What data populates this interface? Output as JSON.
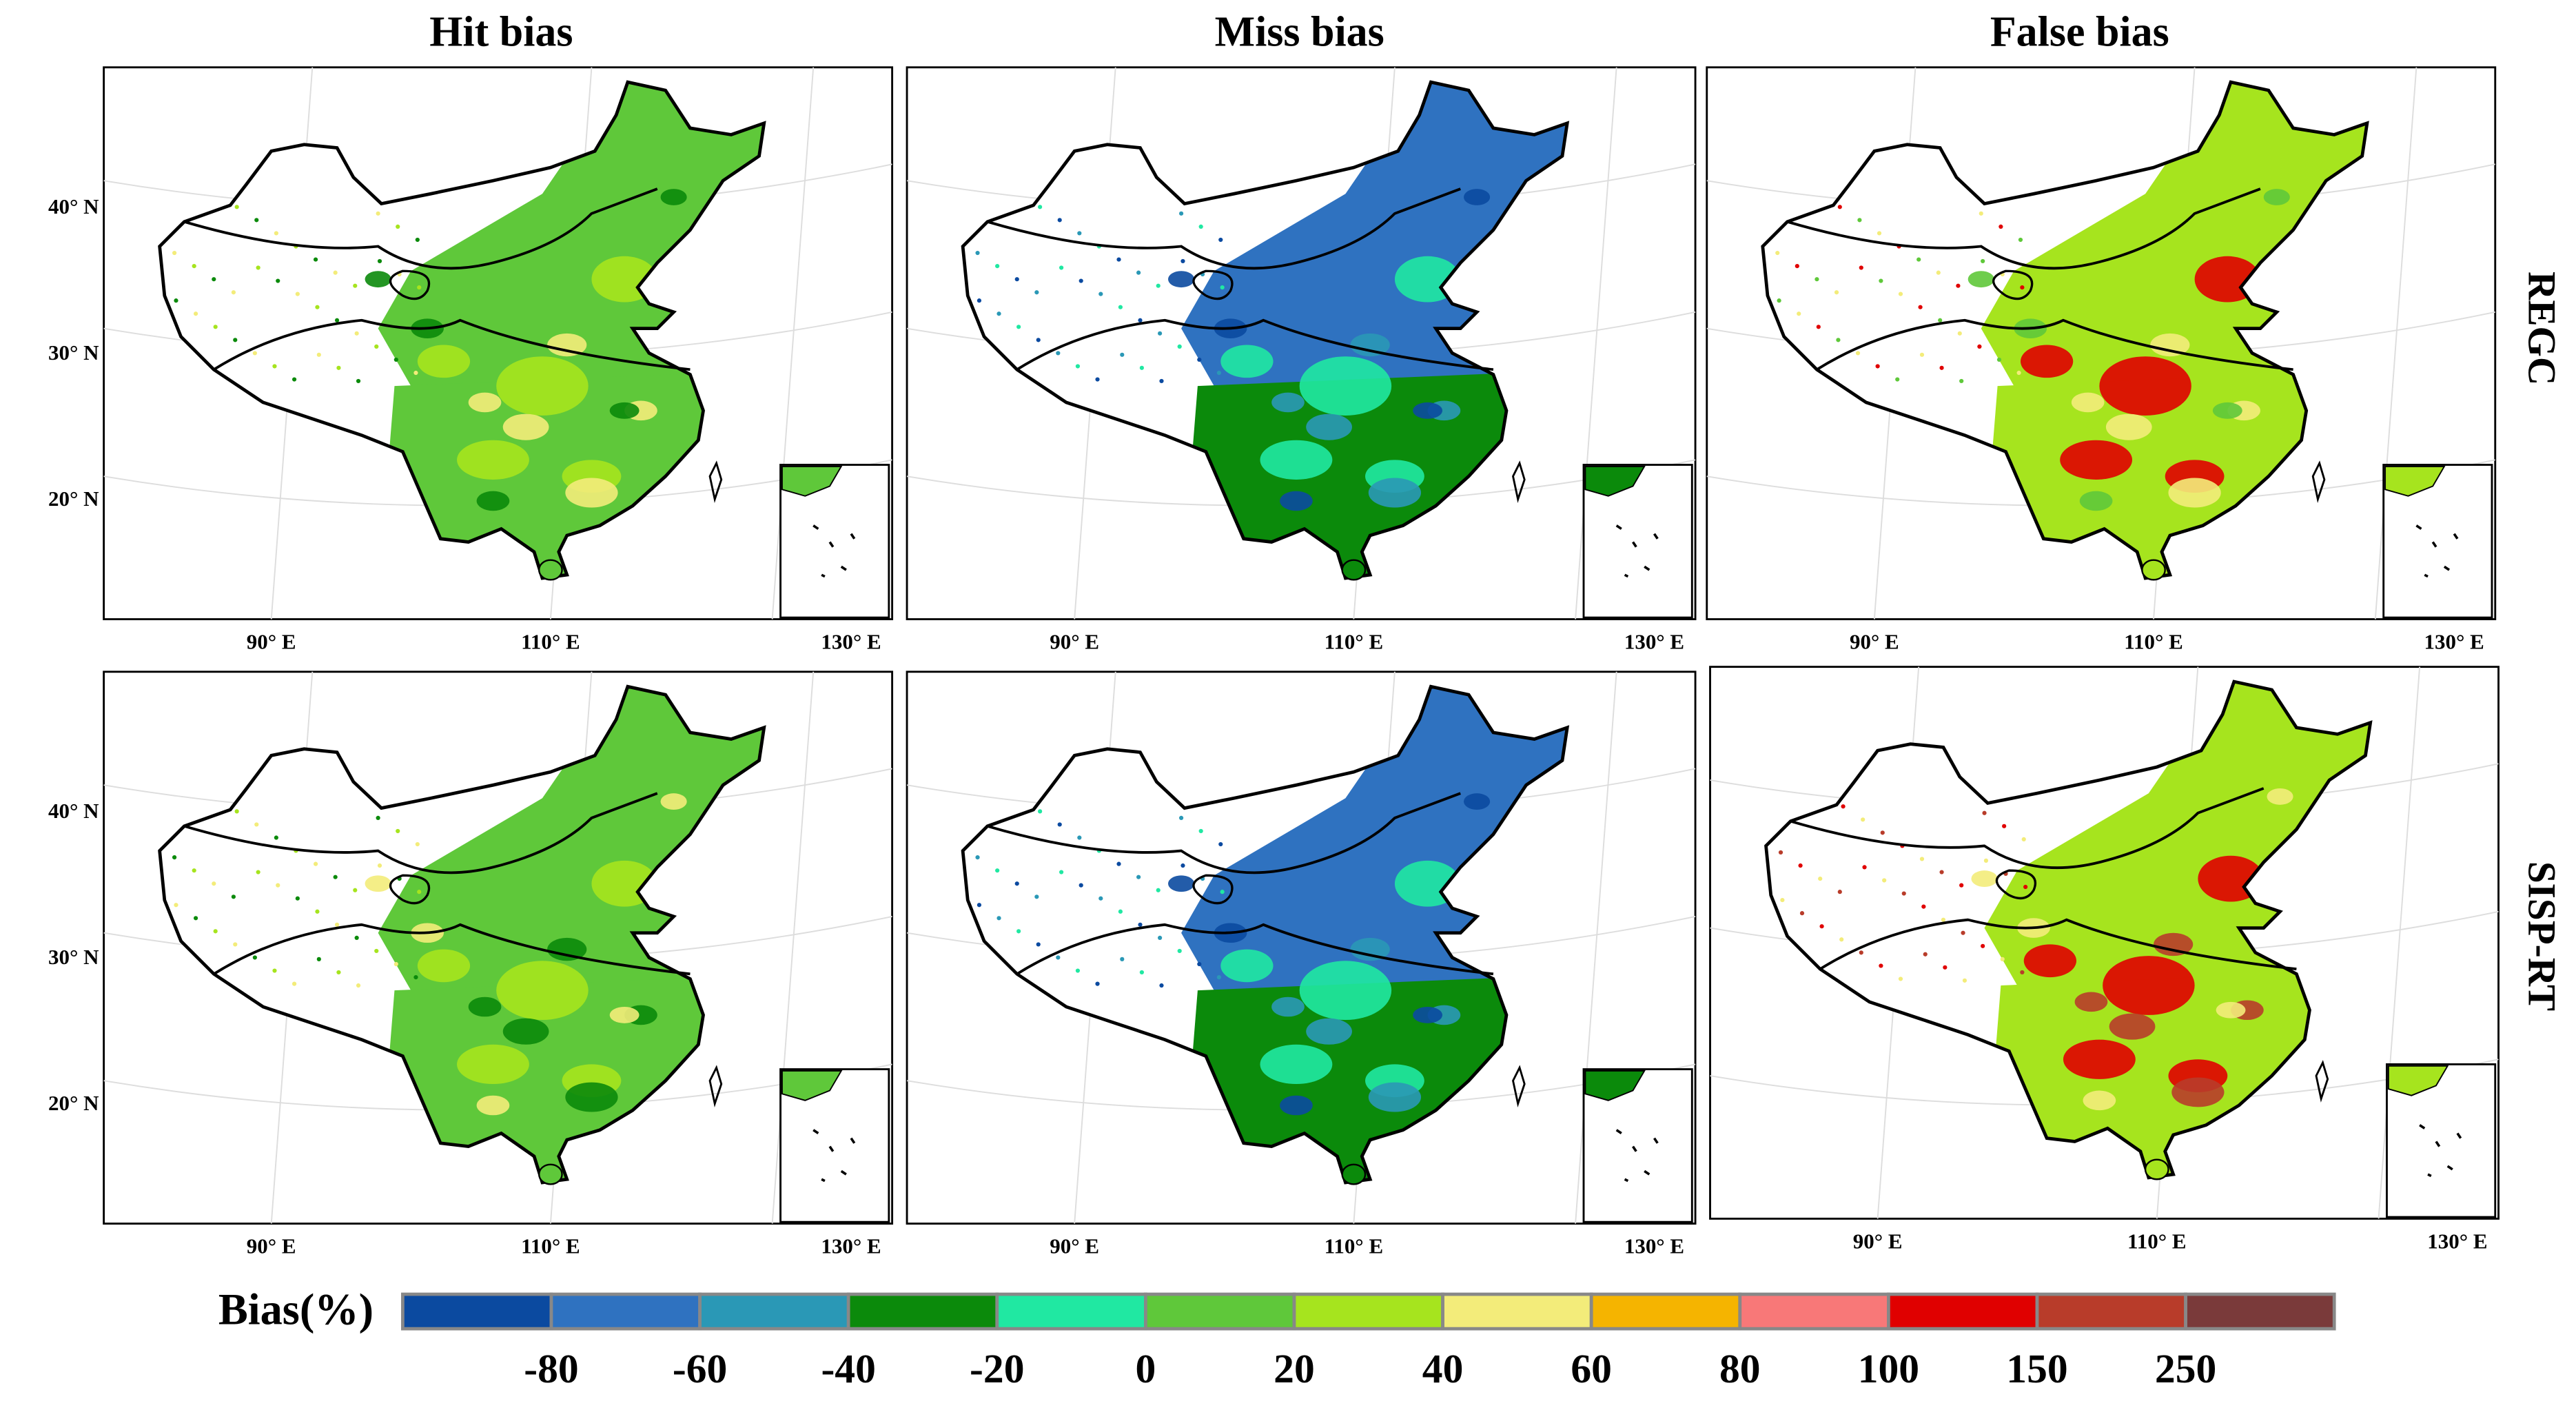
{
  "columns": [
    "Hit bias",
    "Miss bias",
    "False bias"
  ],
  "rows": [
    "REGC",
    "SISP-RT"
  ],
  "lat_labels": [
    "40° N",
    "30° N",
    "20° N"
  ],
  "lon_labels": [
    "90° E",
    "110° E",
    "130° E"
  ],
  "legend": {
    "label": "Bias(%)",
    "colors": [
      "#0b4aa0",
      "#2f72c0",
      "#2a98b6",
      "#0b8a0b",
      "#20e8a2",
      "#5fc83a",
      "#a6e41e",
      "#f3ec7a",
      "#f5b400",
      "#f87878",
      "#e00000",
      "#b83c2a",
      "#7a3a3a"
    ],
    "ticks": [
      -80,
      -60,
      -40,
      -20,
      0,
      20,
      40,
      60,
      80,
      100,
      150,
      250
    ]
  }
}
